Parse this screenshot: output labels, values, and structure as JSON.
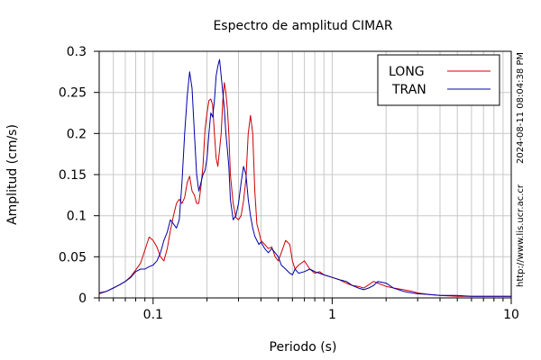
{
  "chart_data": {
    "type": "line",
    "title": "Espectro de amplitud CIMAR",
    "xlabel": "Periodo (s)",
    "ylabel": "Amplitud (cm/s)",
    "x_scale": "log",
    "xlim": [
      0.05,
      10
    ],
    "ylim": [
      0,
      0.3
    ],
    "grid": true,
    "legend_position": "top-right",
    "x_ticks": [
      {
        "value": 0.1,
        "label": "0.1"
      },
      {
        "value": 1,
        "label": "1"
      },
      {
        "value": 10,
        "label": "10"
      }
    ],
    "y_ticks": [
      {
        "value": 0,
        "label": "0"
      },
      {
        "value": 0.05,
        "label": "0.05"
      },
      {
        "value": 0.1,
        "label": "0.1"
      },
      {
        "value": 0.15,
        "label": "0.15"
      },
      {
        "value": 0.2,
        "label": "0.2"
      },
      {
        "value": 0.25,
        "label": "0.25"
      },
      {
        "value": 0.3,
        "label": "0.3"
      }
    ],
    "series": [
      {
        "name": "LONG",
        "color": "#cc0000",
        "x": [
          0.05,
          0.055,
          0.06,
          0.065,
          0.07,
          0.075,
          0.08,
          0.085,
          0.09,
          0.095,
          0.1,
          0.105,
          0.11,
          0.115,
          0.12,
          0.125,
          0.13,
          0.135,
          0.14,
          0.145,
          0.15,
          0.155,
          0.16,
          0.165,
          0.17,
          0.175,
          0.18,
          0.185,
          0.19,
          0.195,
          0.2,
          0.205,
          0.21,
          0.215,
          0.22,
          0.225,
          0.23,
          0.235,
          0.24,
          0.245,
          0.25,
          0.255,
          0.26,
          0.265,
          0.27,
          0.28,
          0.29,
          0.3,
          0.31,
          0.32,
          0.33,
          0.34,
          0.35,
          0.36,
          0.37,
          0.38,
          0.39,
          0.4,
          0.42,
          0.44,
          0.46,
          0.48,
          0.5,
          0.52,
          0.55,
          0.58,
          0.6,
          0.62,
          0.65,
          0.7,
          0.75,
          0.8,
          0.85,
          0.9,
          1.0,
          1.1,
          1.2,
          1.3,
          1.4,
          1.5,
          1.6,
          1.7,
          1.8,
          2.0,
          2.2,
          2.5,
          2.8,
          3.0,
          3.5,
          4.0,
          5.0,
          6.0,
          7.0,
          8.0,
          9.0,
          10.0
        ],
        "y": [
          0.005,
          0.008,
          0.012,
          0.016,
          0.02,
          0.026,
          0.034,
          0.042,
          0.058,
          0.074,
          0.07,
          0.062,
          0.05,
          0.045,
          0.06,
          0.082,
          0.1,
          0.115,
          0.12,
          0.115,
          0.122,
          0.14,
          0.148,
          0.13,
          0.125,
          0.115,
          0.115,
          0.135,
          0.16,
          0.205,
          0.225,
          0.24,
          0.242,
          0.235,
          0.2,
          0.17,
          0.16,
          0.18,
          0.2,
          0.24,
          0.262,
          0.25,
          0.23,
          0.2,
          0.15,
          0.115,
          0.098,
          0.095,
          0.1,
          0.118,
          0.145,
          0.2,
          0.222,
          0.2,
          0.13,
          0.09,
          0.08,
          0.07,
          0.065,
          0.06,
          0.062,
          0.05,
          0.045,
          0.055,
          0.07,
          0.065,
          0.045,
          0.035,
          0.04,
          0.045,
          0.035,
          0.03,
          0.032,
          0.028,
          0.025,
          0.022,
          0.018,
          0.015,
          0.014,
          0.012,
          0.016,
          0.02,
          0.018,
          0.014,
          0.012,
          0.01,
          0.008,
          0.006,
          0.004,
          0.003,
          0.002,
          0.002,
          0.002,
          0.002,
          0.002,
          0.002
        ]
      },
      {
        "name": "TRAN",
        "color": "#0000aa",
        "x": [
          0.05,
          0.055,
          0.06,
          0.065,
          0.07,
          0.075,
          0.08,
          0.085,
          0.09,
          0.095,
          0.1,
          0.105,
          0.11,
          0.115,
          0.12,
          0.125,
          0.13,
          0.135,
          0.14,
          0.145,
          0.15,
          0.155,
          0.16,
          0.165,
          0.17,
          0.175,
          0.18,
          0.185,
          0.19,
          0.195,
          0.2,
          0.205,
          0.21,
          0.215,
          0.22,
          0.225,
          0.23,
          0.235,
          0.24,
          0.245,
          0.25,
          0.255,
          0.26,
          0.265,
          0.27,
          0.28,
          0.29,
          0.3,
          0.31,
          0.32,
          0.33,
          0.34,
          0.35,
          0.36,
          0.37,
          0.38,
          0.39,
          0.4,
          0.42,
          0.44,
          0.46,
          0.48,
          0.5,
          0.52,
          0.55,
          0.58,
          0.6,
          0.62,
          0.65,
          0.7,
          0.75,
          0.8,
          0.85,
          0.9,
          1.0,
          1.1,
          1.2,
          1.3,
          1.4,
          1.5,
          1.6,
          1.7,
          1.8,
          2.0,
          2.2,
          2.5,
          2.8,
          3.0,
          3.5,
          4.0,
          5.0,
          6.0,
          7.0,
          8.0,
          9.0,
          10.0
        ],
        "y": [
          0.006,
          0.008,
          0.012,
          0.016,
          0.02,
          0.025,
          0.032,
          0.035,
          0.035,
          0.038,
          0.04,
          0.045,
          0.055,
          0.07,
          0.08,
          0.095,
          0.09,
          0.085,
          0.095,
          0.14,
          0.2,
          0.245,
          0.275,
          0.255,
          0.2,
          0.15,
          0.13,
          0.14,
          0.15,
          0.155,
          0.17,
          0.2,
          0.225,
          0.22,
          0.24,
          0.27,
          0.282,
          0.29,
          0.27,
          0.25,
          0.23,
          0.2,
          0.18,
          0.16,
          0.12,
          0.095,
          0.1,
          0.115,
          0.14,
          0.16,
          0.15,
          0.12,
          0.1,
          0.085,
          0.075,
          0.07,
          0.065,
          0.068,
          0.06,
          0.055,
          0.06,
          0.055,
          0.05,
          0.04,
          0.035,
          0.03,
          0.028,
          0.035,
          0.03,
          0.032,
          0.035,
          0.032,
          0.03,
          0.028,
          0.025,
          0.022,
          0.02,
          0.015,
          0.012,
          0.01,
          0.012,
          0.015,
          0.02,
          0.018,
          0.012,
          0.008,
          0.006,
          0.005,
          0.004,
          0.003,
          0.003,
          0.002,
          0.002,
          0.002,
          0.002,
          0.002
        ]
      }
    ],
    "side_labels": {
      "timestamp": "2024-08-11 08:04:38 PM",
      "url": "http://www.lis.ucr.ac.cr"
    }
  }
}
